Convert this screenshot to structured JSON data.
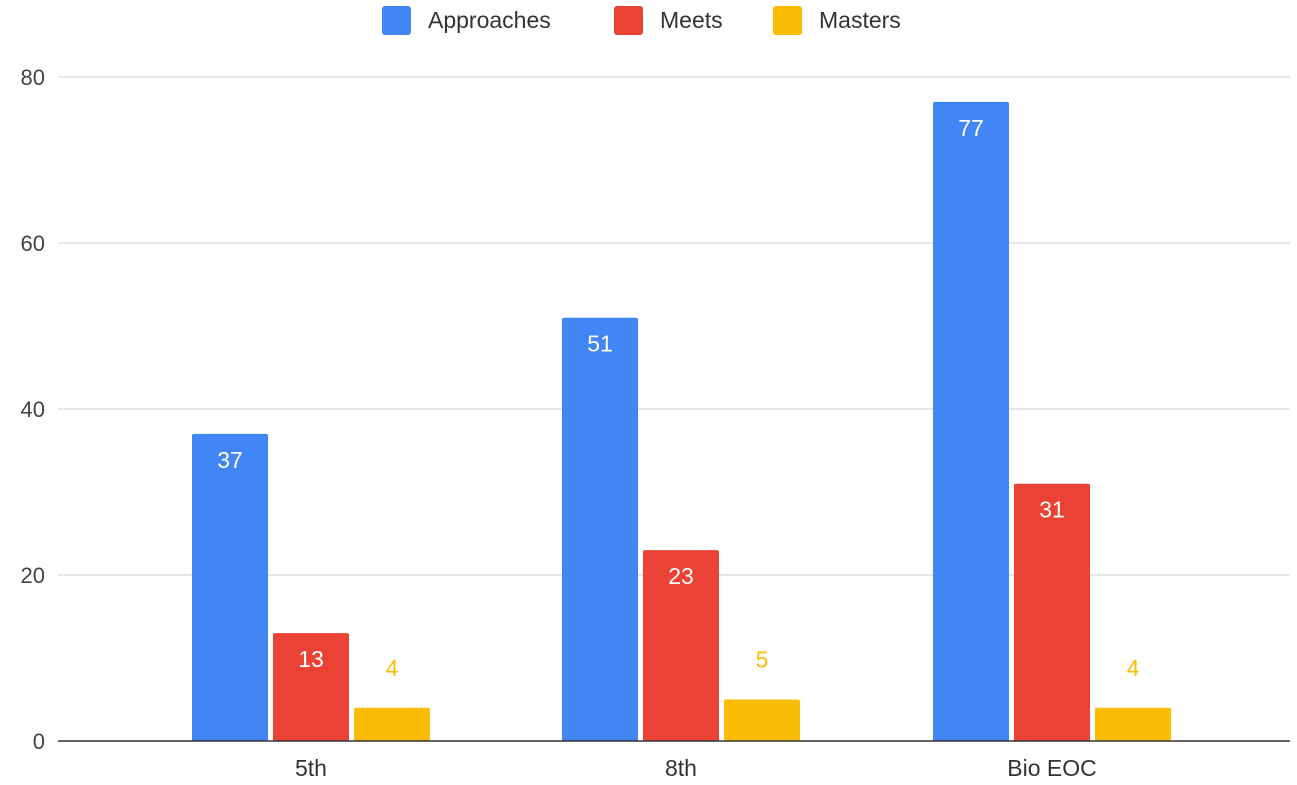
{
  "chart_data": {
    "type": "bar",
    "categories": [
      "5th",
      "8th",
      "Bio EOC"
    ],
    "series": [
      {
        "name": "Approaches",
        "values": [
          37,
          51,
          77
        ],
        "color": "#4285f4",
        "label_color": "#ffffff"
      },
      {
        "name": "Meets",
        "values": [
          13,
          23,
          31
        ],
        "color": "#ea4335",
        "label_color": "#ffffff"
      },
      {
        "name": "Masters",
        "values": [
          4,
          5,
          4
        ],
        "color": "#fbbc04",
        "label_color": "#fbbc04"
      }
    ],
    "yticks": [
      0,
      20,
      40,
      60,
      80
    ],
    "ylim": [
      0,
      80
    ],
    "grid": true,
    "legend_position": "top",
    "title": "",
    "xlabel": "",
    "ylabel": ""
  }
}
